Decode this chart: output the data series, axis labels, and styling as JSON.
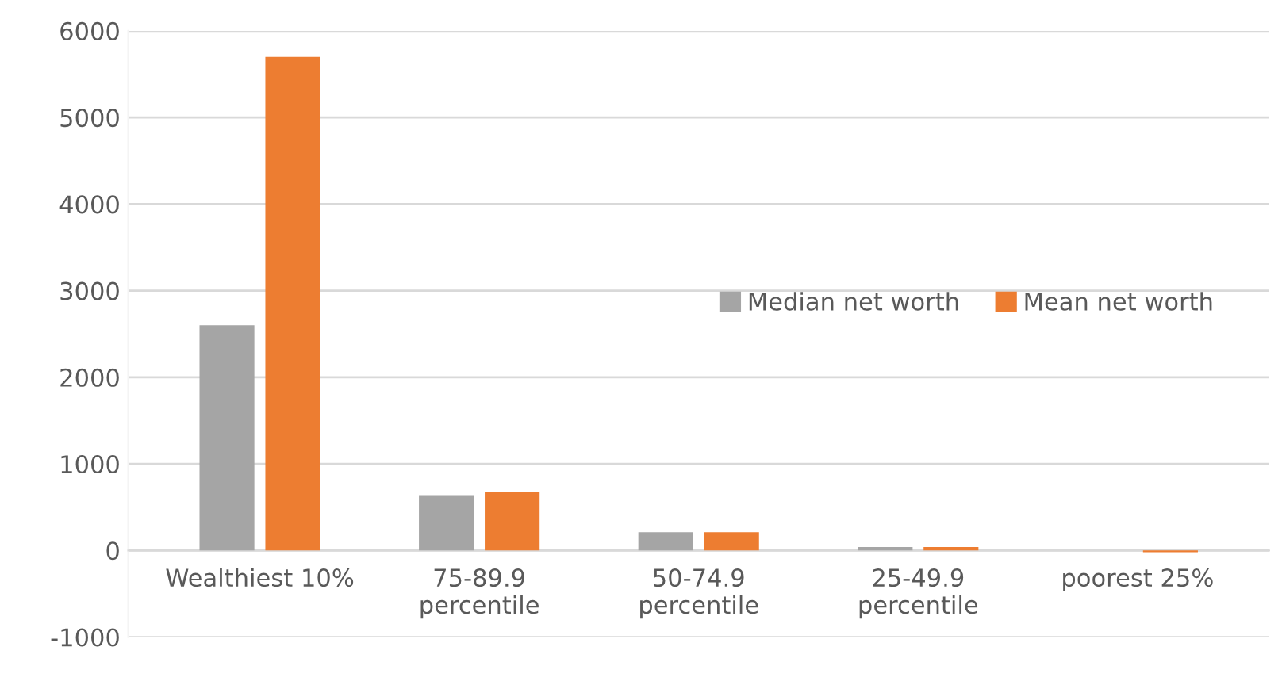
{
  "chart_data": {
    "type": "bar",
    "categories": [
      "Wealthiest 10%",
      "75-89.9\npercentile",
      "50-74.9\npercentile",
      "25-49.9\npercentile",
      "poorest 25%"
    ],
    "series": [
      {
        "name": "Median net worth",
        "color": "#a5a5a5",
        "values": [
          2600,
          640,
          210,
          40,
          0
        ]
      },
      {
        "name": "Mean net worth",
        "color": "#ed7d31",
        "values": [
          5700,
          680,
          210,
          40,
          -20
        ]
      }
    ],
    "ylim": [
      -1000,
      6000
    ],
    "yticks": [
      -1000,
      0,
      1000,
      2000,
      3000,
      4000,
      5000,
      6000
    ],
    "grid": "y",
    "legend": "right"
  }
}
